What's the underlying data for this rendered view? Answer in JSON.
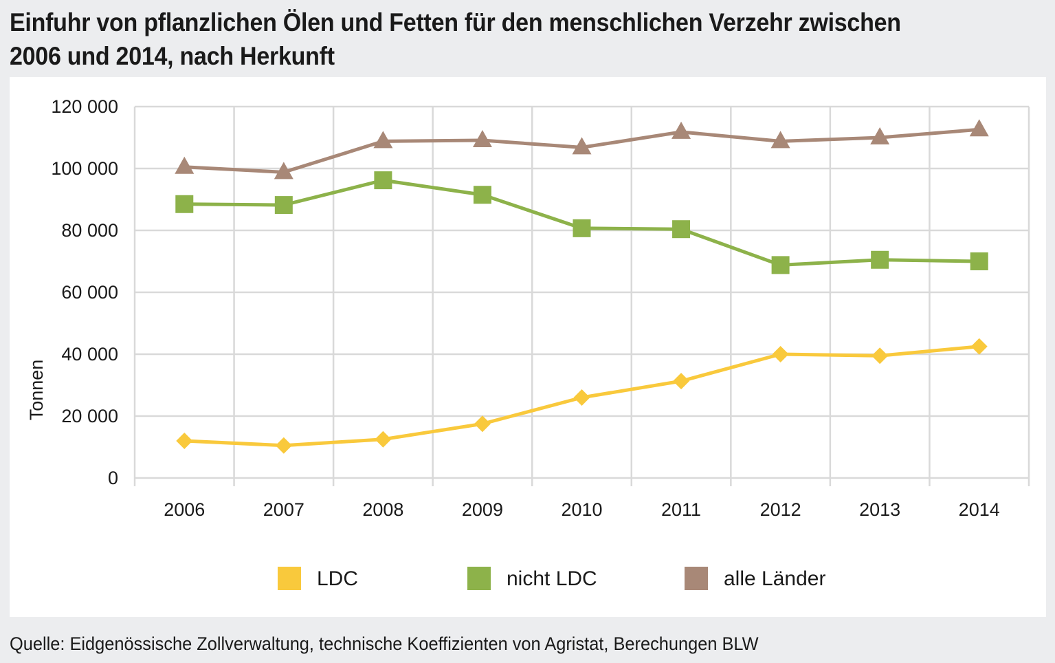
{
  "title": "Einfuhr von pflanzlichen Ölen und Fetten für den menschlichen Verzehr zwischen 2006 und 2014, nach Herkunft",
  "source": "Quelle: Eidgenössische Zollverwaltung, technische Koeffizienten von Agristat, Berechungen BLW",
  "chart_data": {
    "type": "line",
    "title": "Einfuhr von pflanzlichen Ölen und Fetten für den menschlichen Verzehr zwischen 2006 und 2014, nach Herkunft",
    "xlabel": "",
    "ylabel": "Tonnen",
    "ylim": [
      0,
      120000
    ],
    "yticks": [
      0,
      20000,
      40000,
      60000,
      80000,
      100000,
      120000
    ],
    "ytick_labels": [
      "0",
      "20 000",
      "40 000",
      "60 000",
      "80 000",
      "100 000",
      "120 000"
    ],
    "grid": true,
    "legend_position": "bottom",
    "categories": [
      "2006",
      "2007",
      "2008",
      "2009",
      "2010",
      "2011",
      "2012",
      "2013",
      "2014"
    ],
    "series": [
      {
        "name": "LDC",
        "color": "#F9C93C",
        "marker": "diamond",
        "values": [
          12000,
          10500,
          12500,
          17500,
          26000,
          31300,
          40000,
          39500,
          42500
        ]
      },
      {
        "name": "nicht LDC",
        "color": "#8DB24A",
        "marker": "square",
        "values": [
          88500,
          88200,
          96200,
          91500,
          80700,
          80400,
          68800,
          70500,
          70000
        ]
      },
      {
        "name": "alle Länder",
        "color": "#A88877",
        "marker": "triangle",
        "values": [
          100500,
          98800,
          108800,
          109100,
          106800,
          111800,
          108800,
          110000,
          112600
        ]
      }
    ]
  }
}
